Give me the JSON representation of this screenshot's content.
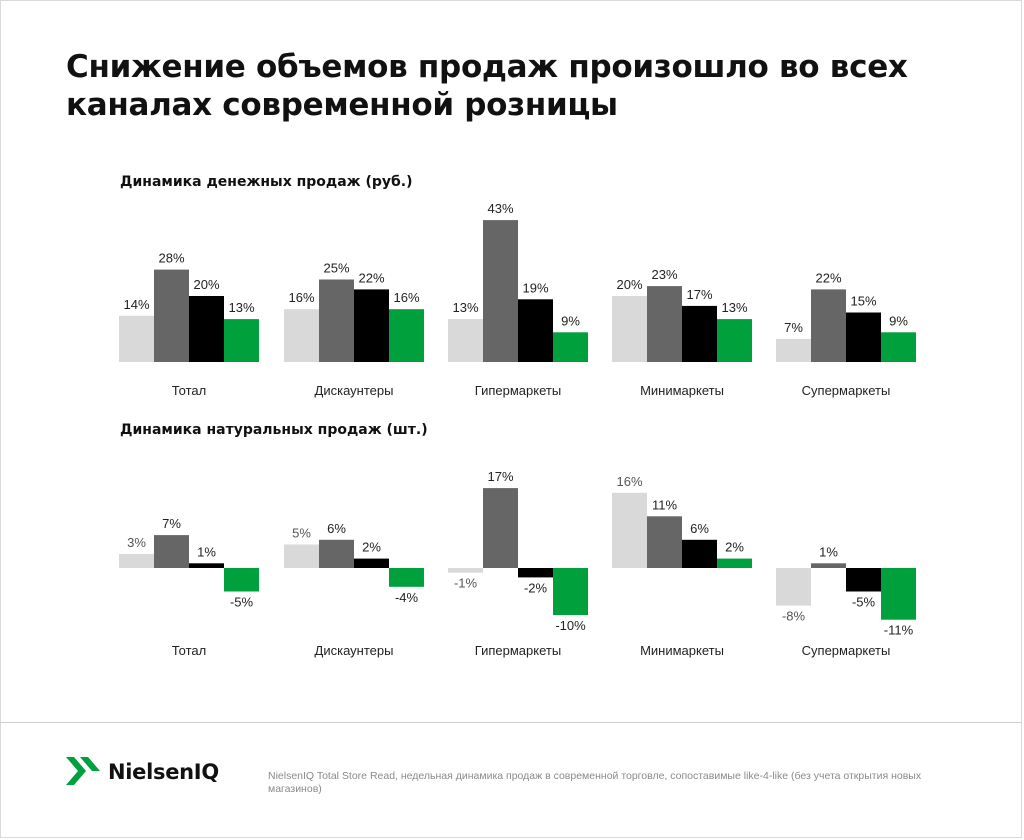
{
  "title": "Снижение объемов продаж произошло во всех каналах современной розницы",
  "colors": [
    "#d9d9d9",
    "#666666",
    "#000000",
    "#00a03c"
  ],
  "chart_data": [
    {
      "type": "bar",
      "title": "Динамика денежных продаж (руб.)",
      "categories": [
        "Тотал",
        "Дискаунтеры",
        "Гипермаркеты",
        "Минимаркеты",
        "Супермаркеты"
      ],
      "series": [
        {
          "values": [
            14,
            16,
            13,
            20,
            7
          ],
          "labels": [
            "14%",
            "16%",
            "13%",
            "20%",
            "7%"
          ]
        },
        {
          "values": [
            28,
            25,
            43,
            23,
            22
          ],
          "labels": [
            "28%",
            "25%",
            "43%",
            "23%",
            "22%"
          ]
        },
        {
          "values": [
            20,
            22,
            19,
            17,
            15
          ],
          "labels": [
            "20%",
            "22%",
            "19%",
            "17%",
            "15%"
          ]
        },
        {
          "values": [
            13,
            16,
            9,
            13,
            9
          ],
          "labels": [
            "13%",
            "16%",
            "9%",
            "13%",
            "9%"
          ]
        }
      ],
      "unit": "%",
      "grid": false,
      "legend": "none"
    },
    {
      "type": "bar",
      "title": "Динамика натуральных продаж (шт.)",
      "categories": [
        "Тотал",
        "Дискаунтеры",
        "Гипермаркеты",
        "Минимаркеты",
        "Супермаркеты"
      ],
      "series": [
        {
          "values": [
            3,
            5,
            -1,
            16,
            -8
          ],
          "labels": [
            "3%",
            "5%",
            "-1%",
            "16%",
            "-8%"
          ]
        },
        {
          "values": [
            7,
            6,
            17,
            11,
            1
          ],
          "labels": [
            "7%",
            "6%",
            "17%",
            "11%",
            "1%"
          ]
        },
        {
          "values": [
            1,
            2,
            -2,
            6,
            -5
          ],
          "labels": [
            "1%",
            "2%",
            "-2%",
            "6%",
            "-5%"
          ]
        },
        {
          "values": [
            -5,
            -4,
            -10,
            2,
            -11
          ],
          "labels": [
            "-5%",
            "-4%",
            "-10%",
            "2%",
            "-11%"
          ]
        }
      ],
      "unit": "%",
      "grid": false,
      "legend": "none"
    }
  ],
  "logo": {
    "text": "NielsenIQ"
  },
  "footnote": "NielsenIQ Total Store Read, недельная динамика продаж в современной торговле, сопоставимые like-4-like (без учета открытия новых магазинов)"
}
